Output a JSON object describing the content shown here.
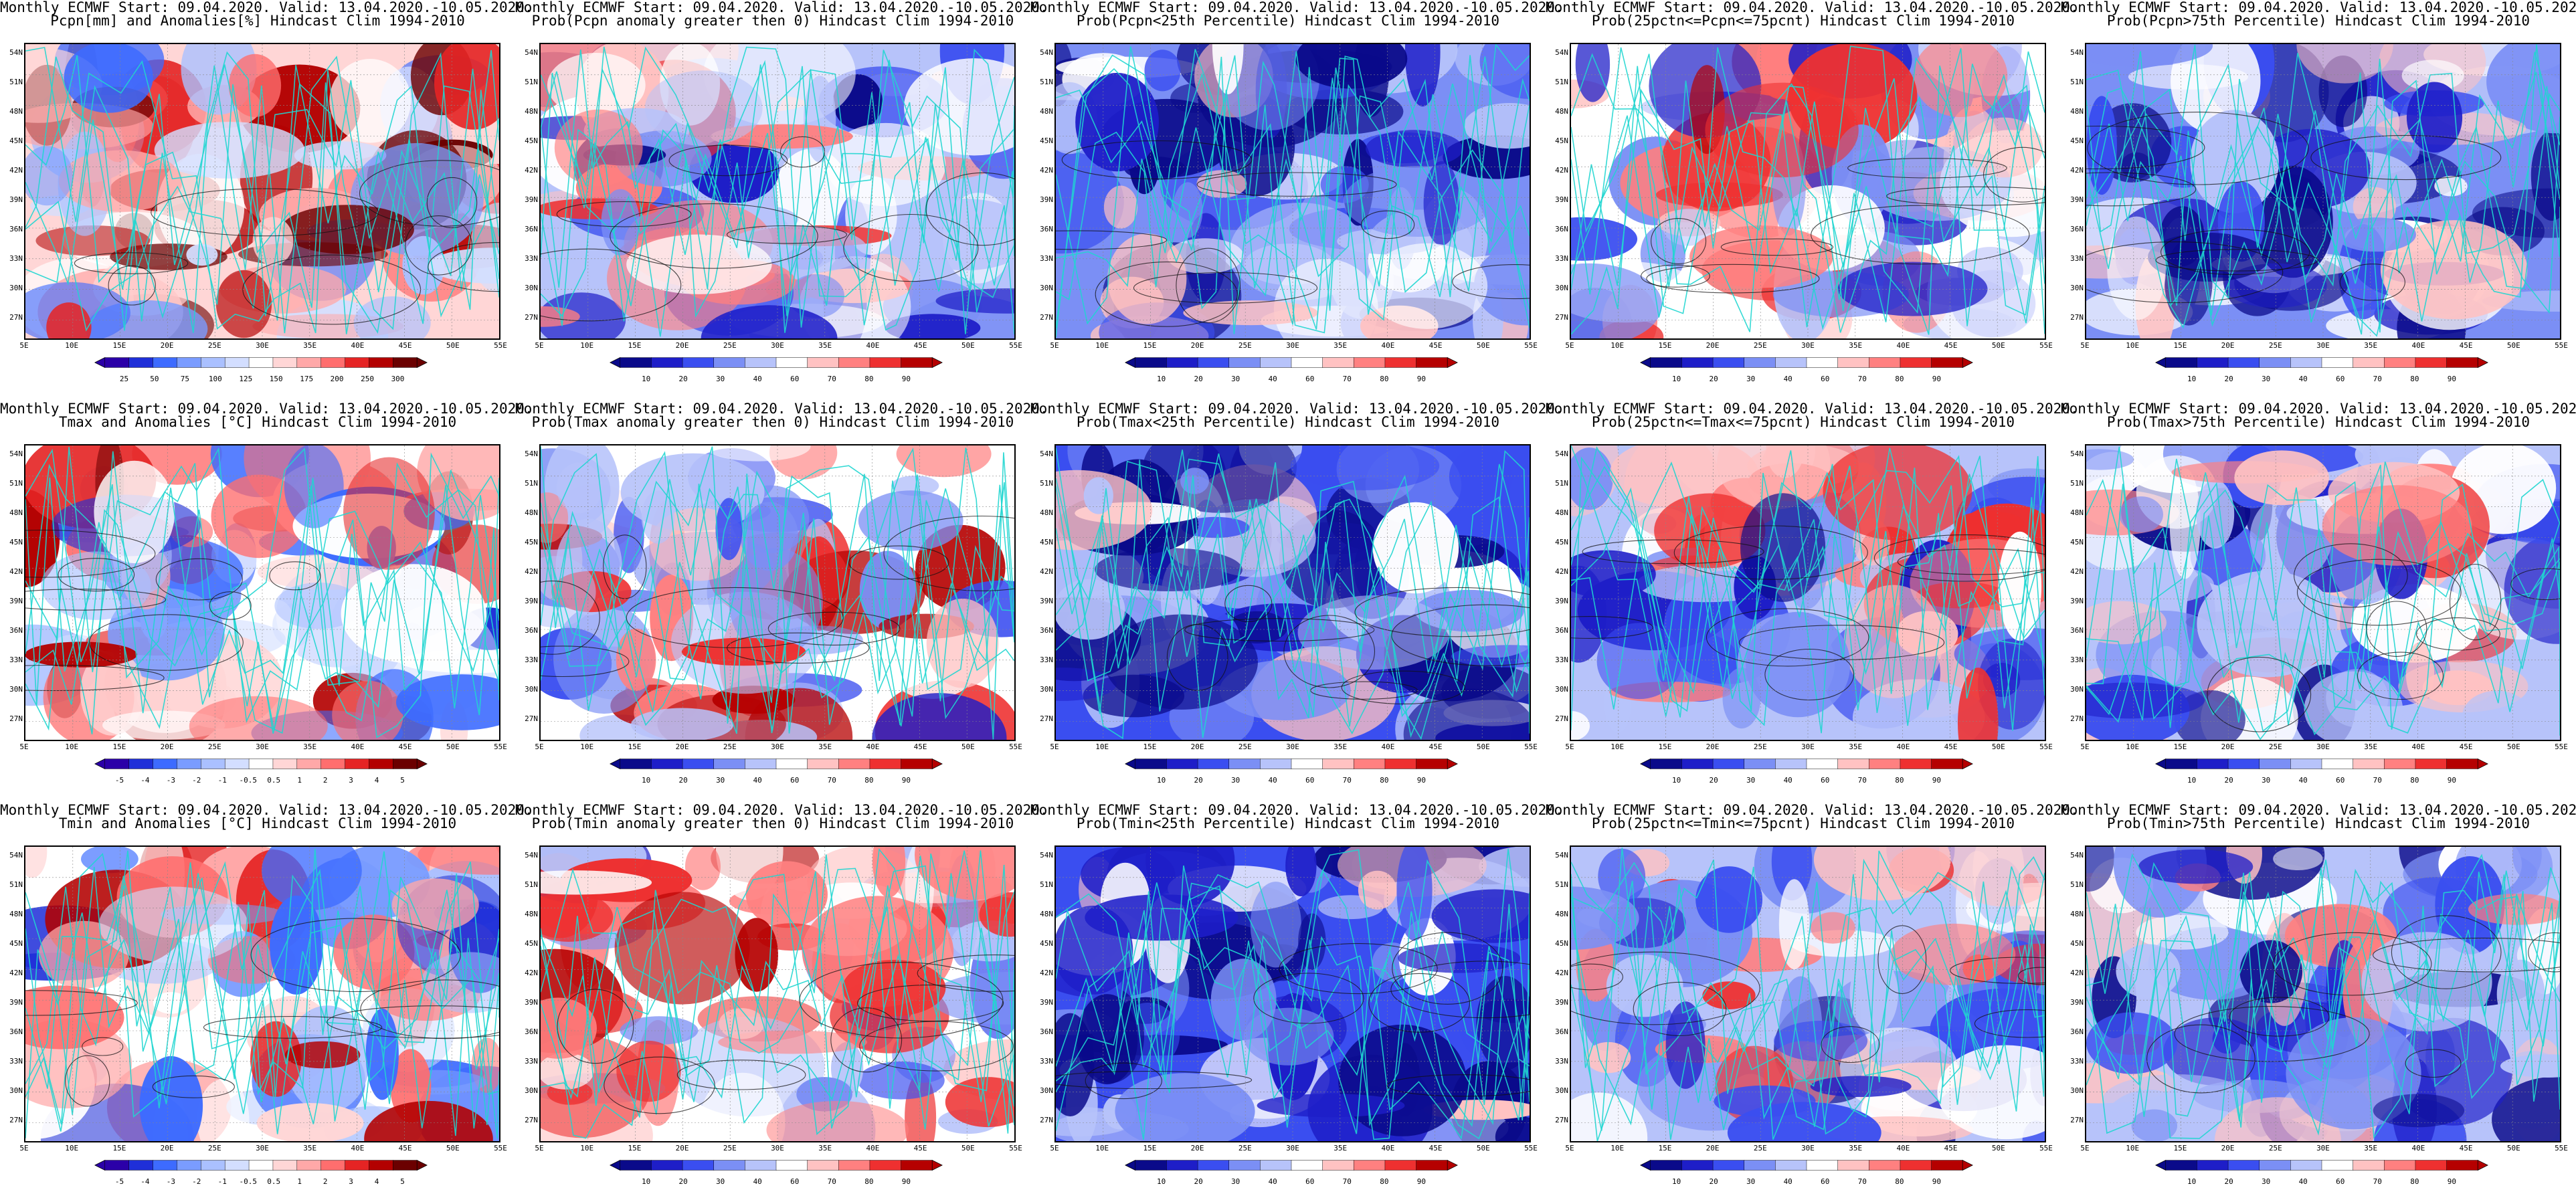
{
  "latitude_labels": [
    "54N",
    "51N",
    "48N",
    "45N",
    "42N",
    "39N",
    "36N",
    "33N",
    "30N",
    "27N"
  ],
  "longitude_labels": [
    "5E",
    "10E",
    "15E",
    "20E",
    "25E",
    "30E",
    "35E",
    "40E",
    "45E",
    "50E",
    "55E"
  ],
  "palettes": {
    "anomaly": [
      "#2b00a8",
      "#1f2fd8",
      "#3d6bff",
      "#7a9cff",
      "#aac0ff",
      "#d3deff",
      "#ffffff",
      "#ffd6d6",
      "#ffa8a8",
      "#ff6e6e",
      "#e52424",
      "#b30000",
      "#6b0000"
    ],
    "prob": [
      "#0a0a8a",
      "#1e1ec8",
      "#3a4ef0",
      "#7b8ff5",
      "#b7c3fa",
      "#ffffff",
      "#ffc2c2",
      "#ff8080",
      "#ee3030",
      "#b50000"
    ]
  },
  "rows": [
    [
      {
        "title1": "Monthly ECMWF Start: 09.04.2020. Valid: 13.04.2020.-10.05.2020.",
        "title2": "Pcpn[mm] and Anomalies[%] Hindcast Clim 1994-2010",
        "palette": "anomaly",
        "bias": 0.15,
        "seed": 1,
        "ticks": [
          "25",
          "50",
          "75",
          "100",
          "125",
          "150",
          "175",
          "200",
          "250",
          "300"
        ]
      },
      {
        "title1": "Monthly ECMWF Start: 09.04.2020. Valid: 13.04.2020.-10.05.2020.",
        "title2": "Prob(Pcpn anomaly greater then 0) Hindcast Clim 1994-2010",
        "palette": "prob",
        "bias": -0.1,
        "seed": 2,
        "ticks": [
          "10",
          "20",
          "30",
          "40",
          "60",
          "70",
          "80",
          "90"
        ]
      },
      {
        "title1": "Monthly ECMWF Start: 09.04.2020. Valid: 13.04.2020.-10.05.2020.",
        "title2": "Prob(Pcpn<25th Percentile) Hindcast Clim 1994-2010",
        "palette": "prob",
        "bias": -0.45,
        "seed": 3,
        "ticks": [
          "10",
          "20",
          "30",
          "40",
          "60",
          "70",
          "80",
          "90"
        ]
      },
      {
        "title1": "Monthly ECMWF Start: 09.04.2020. Valid: 13.04.2020.-10.05.2020.",
        "title2": "Prob(25pctn<=Pcpn<=75pcnt) Hindcast Clim 1994-2010",
        "palette": "prob",
        "bias": 0.05,
        "seed": 4,
        "ticks": [
          "10",
          "20",
          "30",
          "40",
          "60",
          "70",
          "80",
          "90"
        ]
      },
      {
        "title1": "Monthly ECMWF Start: 09.04.2020. Valid: 13.04.2020.-10.05.2020.",
        "title2": "Prob(Pcpn>75th Percentile) Hindcast Clim 1994-2010",
        "palette": "prob",
        "bias": -0.55,
        "seed": 5,
        "ticks": [
          "10",
          "20",
          "30",
          "40",
          "60",
          "70",
          "80",
          "90"
        ]
      }
    ],
    [
      {
        "title1": "Monthly ECMWF Start: 09.04.2020. Valid: 13.04.2020.-10.05.2020.",
        "title2": "Tmax and Anomalies [°C] Hindcast Clim 1994-2010",
        "palette": "anomaly",
        "bias": 0.1,
        "seed": 6,
        "ticks": [
          "-5",
          "-4",
          "-3",
          "-2",
          "-1",
          "-0.5",
          "0.5",
          "1",
          "2",
          "3",
          "4",
          "5"
        ]
      },
      {
        "title1": "Monthly ECMWF Start: 09.04.2020. Valid: 13.04.2020.-10.05.2020.",
        "title2": "Prob(Tmax anomaly greater then 0) Hindcast Clim 1994-2010",
        "palette": "prob",
        "bias": 0.2,
        "seed": 7,
        "ticks": [
          "10",
          "20",
          "30",
          "40",
          "60",
          "70",
          "80",
          "90"
        ]
      },
      {
        "title1": "Monthly ECMWF Start: 09.04.2020. Valid: 13.04.2020.-10.05.2020.",
        "title2": "Prob(Tmax<25th Percentile) Hindcast Clim 1994-2010",
        "palette": "prob",
        "bias": -0.6,
        "seed": 8,
        "ticks": [
          "10",
          "20",
          "30",
          "40",
          "60",
          "70",
          "80",
          "90"
        ]
      },
      {
        "title1": "Monthly ECMWF Start: 09.04.2020. Valid: 13.04.2020.-10.05.2020.",
        "title2": "Prob(25pctn<=Tmax<=75pcnt) Hindcast Clim 1994-2010",
        "palette": "prob",
        "bias": -0.05,
        "seed": 9,
        "ticks": [
          "10",
          "20",
          "30",
          "40",
          "60",
          "70",
          "80",
          "90"
        ]
      },
      {
        "title1": "Monthly ECMWF Start: 09.04.2020. Valid: 13.04.2020.-10.05.2020.",
        "title2": "Prob(Tmax>75th Percentile) Hindcast Clim 1994-2010",
        "palette": "prob",
        "bias": -0.15,
        "seed": 10,
        "ticks": [
          "10",
          "20",
          "30",
          "40",
          "60",
          "70",
          "80",
          "90"
        ]
      }
    ],
    [
      {
        "title1": "Monthly ECMWF Start: 09.04.2020. Valid: 13.04.2020.-10.05.2020.",
        "title2": "Tmin and Anomalies [°C] Hindcast Clim 1994-2010",
        "palette": "anomaly",
        "bias": 0.05,
        "seed": 11,
        "ticks": [
          "-5",
          "-4",
          "-3",
          "-2",
          "-1",
          "-0.5",
          "0.5",
          "1",
          "2",
          "3",
          "4",
          "5"
        ]
      },
      {
        "title1": "Monthly ECMWF Start: 09.04.2020. Valid: 13.04.2020.-10.05.2020.",
        "title2": "Prob(Tmin anomaly greater then 0) Hindcast Clim 1994-2010",
        "palette": "prob",
        "bias": 0.15,
        "seed": 12,
        "ticks": [
          "10",
          "20",
          "30",
          "40",
          "60",
          "70",
          "80",
          "90"
        ]
      },
      {
        "title1": "Monthly ECMWF Start: 09.04.2020. Valid: 13.04.2020.-10.05.2020.",
        "title2": "Prob(Tmin<25th Percentile) Hindcast Clim 1994-2010",
        "palette": "prob",
        "bias": -0.6,
        "seed": 13,
        "ticks": [
          "10",
          "20",
          "30",
          "40",
          "60",
          "70",
          "80",
          "90"
        ]
      },
      {
        "title1": "Monthly ECMWF Start: 09.04.2020. Valid: 13.04.2020.-10.05.2020.",
        "title2": "Prob(25pctn<=Tmin<=75pcnt) Hindcast Clim 1994-2010",
        "palette": "prob",
        "bias": -0.05,
        "seed": 14,
        "ticks": [
          "10",
          "20",
          "30",
          "40",
          "60",
          "70",
          "80",
          "90"
        ]
      },
      {
        "title1": "Monthly ECMWF Start: 09.04.2020. Valid: 13.04.2020.-10.05.2020.",
        "title2": "Prob(Tmin>75th Percentile) Hindcast Clim 1994-2010",
        "palette": "prob",
        "bias": -0.25,
        "seed": 15,
        "ticks": [
          "10",
          "20",
          "30",
          "40",
          "60",
          "70",
          "80",
          "90"
        ]
      }
    ]
  ]
}
